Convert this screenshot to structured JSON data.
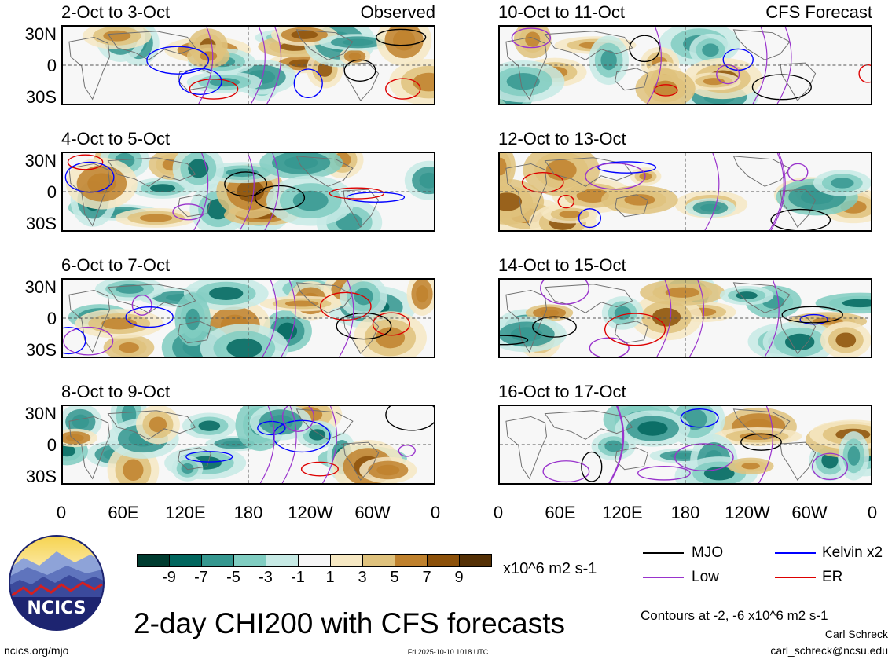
{
  "panels_left": [
    {
      "title": "2-Oct to 3-Oct",
      "label": "Observed"
    },
    {
      "title": "4-Oct to 5-Oct",
      "label": ""
    },
    {
      "title": "6-Oct to 7-Oct",
      "label": ""
    },
    {
      "title": "8-Oct to 9-Oct",
      "label": ""
    }
  ],
  "panels_right": [
    {
      "title": "10-Oct to 11-Oct",
      "label": "CFS Forecast"
    },
    {
      "title": "12-Oct to 13-Oct",
      "label": ""
    },
    {
      "title": "14-Oct to 15-Oct",
      "label": ""
    },
    {
      "title": "16-Oct to 17-Oct",
      "label": ""
    }
  ],
  "lat_ticks": [
    "30N",
    "0",
    "30S"
  ],
  "lon_ticks": [
    "0",
    "60E",
    "120E",
    "180",
    "120W",
    "60W",
    "0"
  ],
  "colorbar": {
    "labels": [
      "-9",
      "-7",
      "-5",
      "-3",
      "-1",
      "1",
      "3",
      "5",
      "7",
      "9"
    ],
    "colors": [
      "#003c30",
      "#01665e",
      "#35978f",
      "#80cdc1",
      "#c7eae5",
      "#f5f5f5",
      "#f6e8c3",
      "#dfc27d",
      "#bf812d",
      "#8c510a",
      "#543005"
    ],
    "units": "x10^6 m2 s-1"
  },
  "legend": {
    "mjo": "MJO",
    "low": "Low",
    "kelvin": "Kelvin x2",
    "er": "ER",
    "colors": {
      "mjo": "#000000",
      "low": "#9933cc",
      "kelvin": "#0000ff",
      "er": "#dd0000"
    }
  },
  "logo": {
    "text": "NCICS"
  },
  "main_title": "2-day CHI200 with CFS forecasts",
  "contours_note": "Contours at -2, -6 x10^6 m2 s-1",
  "author": "Carl Schreck",
  "email": "carl_schreck@ncsu.edu",
  "website": "ncics.org/mjo",
  "timestamp": "Fri 2025-10-10 1018 UTC"
}
